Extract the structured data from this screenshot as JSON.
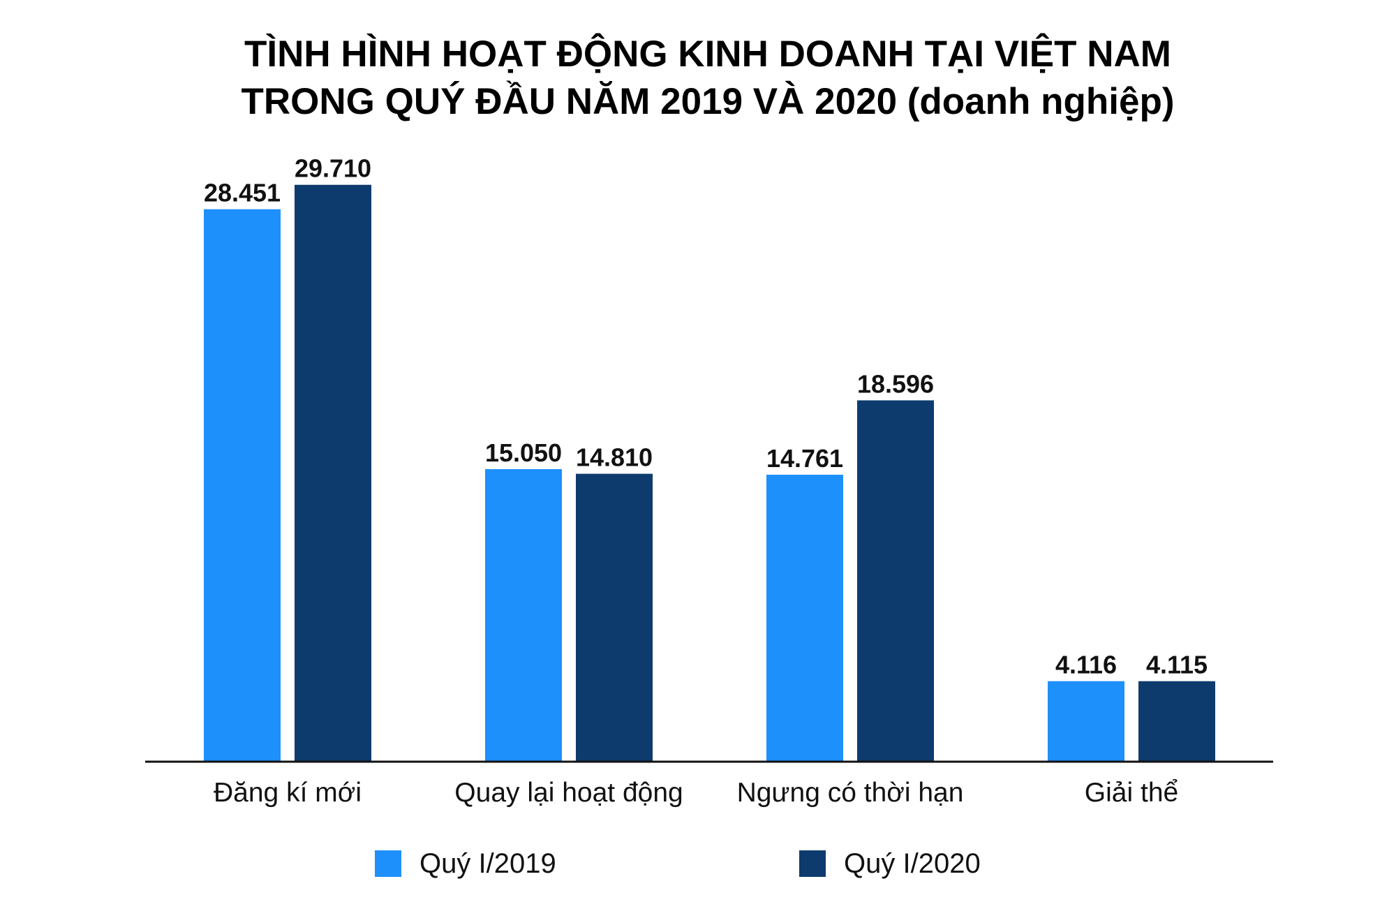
{
  "title_line1": "TÌNH HÌNH HOẠT ĐỘNG KINH DOANH TẠI VIỆT NAM",
  "title_line2": "TRONG QUÝ ĐẦU NĂM 2019 VÀ 2020 (doanh nghiệp)",
  "colors": {
    "series_2019": "#1e90fb",
    "series_2020": "#0d3b6e",
    "axis": "#111111"
  },
  "legend": {
    "position": "bottom",
    "items": [
      {
        "label": "Quý I/2019"
      },
      {
        "label": "Quý I/2020"
      }
    ]
  },
  "chart_data": {
    "type": "bar",
    "title": "TÌNH HÌNH HOẠT ĐỘNG KINH DOANH TẠI VIỆT NAM TRONG QUÝ ĐẦU NĂM 2019 VÀ 2020 (doanh nghiệp)",
    "categories": [
      "Đăng kí mới",
      "Quay lại hoạt động",
      "Ngưng có thời hạn",
      "Giải thể"
    ],
    "series": [
      {
        "name": "Quý I/2019",
        "values": [
          28451,
          15050,
          14761,
          4116
        ],
        "labels": [
          "28.451",
          "15.050",
          "14.761",
          "4.116"
        ]
      },
      {
        "name": "Quý I/2020",
        "values": [
          29710,
          14810,
          18596,
          4115
        ],
        "labels": [
          "29.710",
          "14.810",
          "18.596",
          "4.115"
        ]
      }
    ],
    "xlabel": "",
    "ylabel": "",
    "ylim": [
      0,
      31500
    ],
    "grid": false,
    "legend": "bottom"
  }
}
